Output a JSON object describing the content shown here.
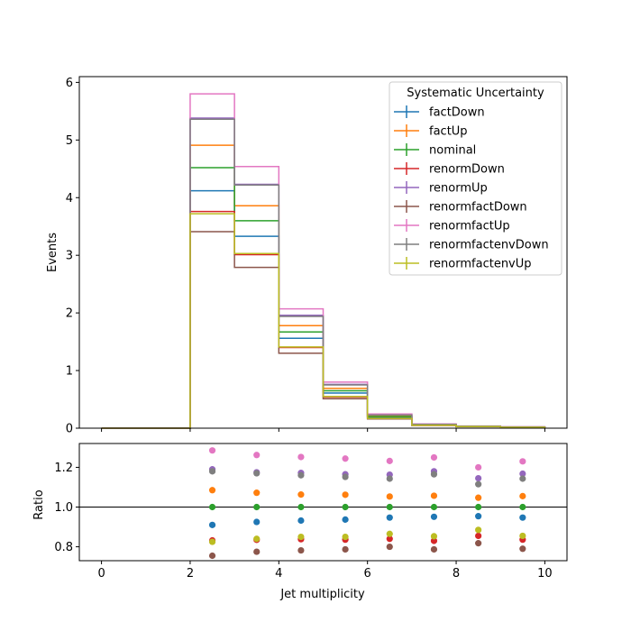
{
  "chart_data": [
    {
      "type": "line",
      "drawstyle": "step",
      "panel": "main",
      "ylabel": "Events",
      "xlim": [
        -0.5,
        10.5
      ],
      "ylim": [
        0,
        6.1
      ],
      "yticks": [
        0,
        1,
        2,
        3,
        4,
        5,
        6
      ],
      "bin_edges": [
        0,
        1,
        2,
        3,
        4,
        5,
        6,
        7,
        8,
        9,
        10
      ],
      "legend": {
        "title": "Systematic Uncertainty",
        "placement": "top-right"
      },
      "series": [
        {
          "name": "factDown",
          "color": "#1f77b4",
          "values": [
            0,
            0,
            4.12,
            3.33,
            1.56,
            0.61,
            0.19,
            0.055,
            0.03,
            0.018
          ]
        },
        {
          "name": "factUp",
          "color": "#ff7f0e",
          "values": [
            0,
            0,
            4.91,
            3.86,
            1.78,
            0.69,
            0.21,
            0.062,
            0.033,
            0.02
          ]
        },
        {
          "name": "nominal",
          "color": "#2ca02c",
          "values": [
            0,
            0,
            4.52,
            3.6,
            1.67,
            0.65,
            0.2,
            0.058,
            0.031,
            0.019
          ]
        },
        {
          "name": "renormDown",
          "color": "#d62728",
          "values": [
            0,
            0,
            3.76,
            3.01,
            1.4,
            0.54,
            0.17,
            0.048,
            0.027,
            0.016
          ]
        },
        {
          "name": "renormUp",
          "color": "#9467bd",
          "values": [
            0,
            0,
            5.38,
            4.23,
            1.96,
            0.76,
            0.234,
            0.068,
            0.036,
            0.022
          ]
        },
        {
          "name": "renormfactDown",
          "color": "#8c564b",
          "values": [
            0,
            0,
            3.41,
            2.79,
            1.3,
            0.51,
            0.16,
            0.046,
            0.025,
            0.015
          ]
        },
        {
          "name": "renormfactUp",
          "color": "#e377c2",
          "values": [
            0,
            0,
            5.8,
            4.54,
            2.07,
            0.8,
            0.247,
            0.073,
            0.037,
            0.023
          ]
        },
        {
          "name": "renormfactenvDown",
          "color": "#7f7f7f",
          "values": [
            0,
            0,
            5.36,
            4.22,
            1.94,
            0.75,
            0.228,
            0.067,
            0.035,
            0.022
          ]
        },
        {
          "name": "renormfactenvUp",
          "color": "#bcbd22",
          "values": [
            0,
            0,
            3.72,
            3.03,
            1.41,
            0.55,
            0.17,
            0.05,
            0.027,
            0.016
          ]
        }
      ]
    },
    {
      "type": "scatter",
      "panel": "ratio",
      "xlabel": "Jet multiplicity",
      "ylabel": "Ratio",
      "xlim": [
        -0.5,
        10.5
      ],
      "ylim": [
        0.73,
        1.32
      ],
      "yticks": [
        0.8,
        1.0,
        1.2
      ],
      "xticks": [
        0,
        2,
        4,
        6,
        8,
        10
      ],
      "reference_line": 1.0,
      "x": [
        2.5,
        3.5,
        4.5,
        5.5,
        6.5,
        7.5,
        8.5,
        9.5
      ],
      "series": [
        {
          "name": "factDown",
          "color": "#1f77b4",
          "values": [
            0.91,
            0.925,
            0.932,
            0.937,
            0.947,
            0.951,
            0.954,
            0.947
          ]
        },
        {
          "name": "factUp",
          "color": "#ff7f0e",
          "values": [
            1.085,
            1.072,
            1.063,
            1.062,
            1.053,
            1.057,
            1.047,
            1.055
          ]
        },
        {
          "name": "nominal",
          "color": "#2ca02c",
          "values": [
            1.0,
            1.0,
            1.0,
            1.0,
            1.0,
            1.0,
            1.0,
            1.0
          ]
        },
        {
          "name": "renormDown",
          "color": "#d62728",
          "values": [
            0.832,
            0.835,
            0.838,
            0.836,
            0.84,
            0.83,
            0.855,
            0.836
          ]
        },
        {
          "name": "renormUp",
          "color": "#9467bd",
          "values": [
            1.19,
            1.175,
            1.172,
            1.165,
            1.163,
            1.18,
            1.145,
            1.168
          ]
        },
        {
          "name": "renormfactDown",
          "color": "#8c564b",
          "values": [
            0.755,
            0.775,
            0.782,
            0.787,
            0.8,
            0.787,
            0.818,
            0.79
          ]
        },
        {
          "name": "renormfactUp",
          "color": "#e377c2",
          "values": [
            1.285,
            1.262,
            1.252,
            1.244,
            1.232,
            1.25,
            1.2,
            1.23
          ]
        },
        {
          "name": "renormfactenvDown",
          "color": "#7f7f7f",
          "values": [
            1.18,
            1.17,
            1.16,
            1.152,
            1.143,
            1.165,
            1.115,
            1.143
          ]
        },
        {
          "name": "renormfactenvUp",
          "color": "#bcbd22",
          "values": [
            0.825,
            0.84,
            0.85,
            0.85,
            0.865,
            0.853,
            0.885,
            0.855
          ]
        }
      ]
    }
  ]
}
